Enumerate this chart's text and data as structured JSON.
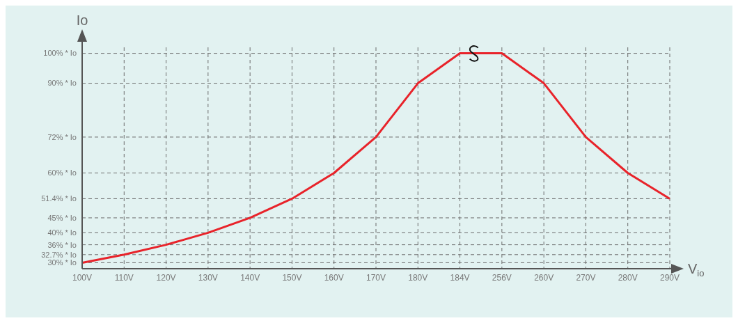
{
  "chart_data": {
    "type": "line",
    "xlabel": "V$_{io}$",
    "ylabel": "Io",
    "categories": [
      "100V",
      "110V",
      "120V",
      "130V",
      "140V",
      "150V",
      "160V",
      "170V",
      "180V",
      "184V",
      "256V",
      "260V",
      "270V",
      "280V",
      "290V"
    ],
    "series": [
      {
        "color": "#e8232a",
        "values": [
          30,
          32.7,
          36,
          40,
          45,
          51.4,
          60,
          72,
          90,
          100,
          100,
          90,
          72,
          60,
          51.4
        ]
      }
    ],
    "ylim": [
      28,
      102
    ],
    "yticks": [
      {
        "value": 30,
        "label": "30% * Io"
      },
      {
        "value": 32.7,
        "label": "32.7% * Io"
      },
      {
        "value": 36,
        "label": "36% * Io"
      },
      {
        "value": 40,
        "label": "40% * Io"
      },
      {
        "value": 45,
        "label": "45% * Io"
      },
      {
        "value": 51.4,
        "label": "51.4% * Io"
      },
      {
        "value": 60,
        "label": "60% * Io"
      },
      {
        "value": 72,
        "label": "72% * Io"
      },
      {
        "value": 90,
        "label": "90% * Io"
      },
      {
        "value": 100,
        "label": "100% * Io"
      }
    ],
    "grid": true,
    "marker": "none",
    "line_style": "solid"
  }
}
